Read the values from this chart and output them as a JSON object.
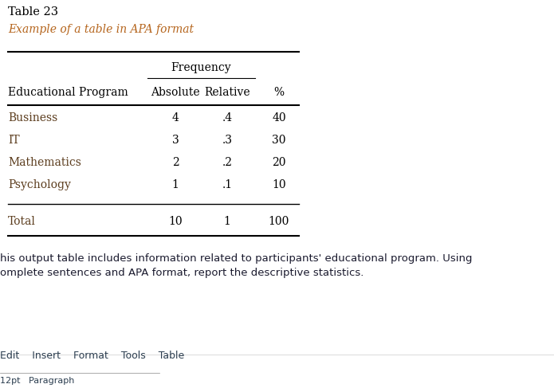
{
  "table_number": "Table 23",
  "table_title": "Example of a table in APA format",
  "table_title_color": "#b5651d",
  "col_header_group": "Frequency",
  "col_headers": [
    "Educational Program",
    "Absolute",
    "Relative",
    "%"
  ],
  "rows": [
    [
      "Business",
      "4",
      ".4",
      "40"
    ],
    [
      "IT",
      "3",
      ".3",
      "30"
    ],
    [
      "Mathematics",
      "2",
      ".2",
      "20"
    ],
    [
      "Psychology",
      "1",
      ".1",
      "10"
    ]
  ],
  "total_row": [
    "Total",
    "10",
    "1",
    "100"
  ],
  "row_label_color": "#5c3d1e",
  "data_color": "#000000",
  "header_color": "#000000",
  "footer_text_line1": "his output table includes information related to participants' educational program. Using",
  "footer_text_line2": "omplete sentences and APA format, report the descriptive statistics.",
  "footer_bar_text": "Edit    Insert    Format    Tools    Table",
  "bg_color": "#ffffff",
  "font_family": "serif",
  "sans_family": "DejaVu Sans"
}
